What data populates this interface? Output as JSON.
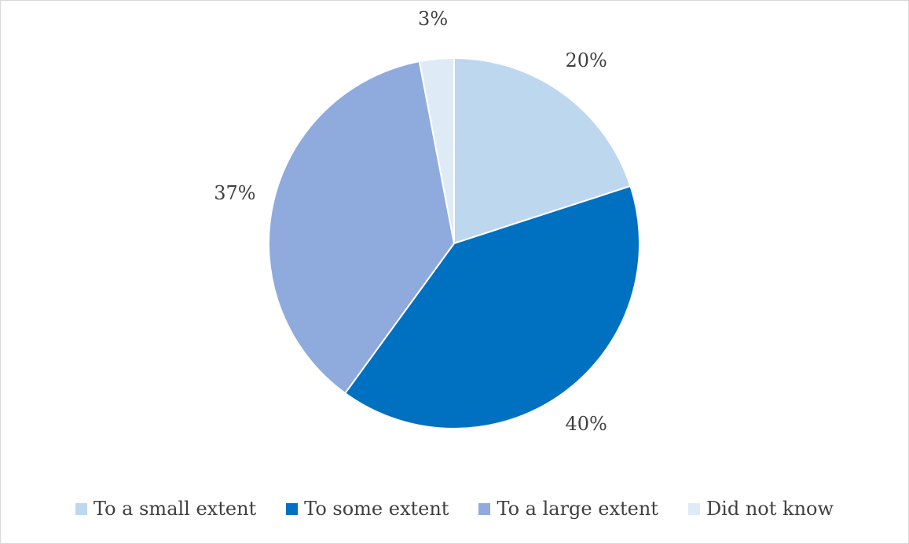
{
  "chart_data": {
    "type": "pie",
    "start_angle_deg": 0,
    "direction": "clockwise",
    "slices": [
      {
        "name": "To a small extent",
        "value": 20,
        "label": "20%",
        "color": "#bdd7ee"
      },
      {
        "name": "To some extent",
        "value": 40,
        "label": "40%",
        "color": "#0070c0"
      },
      {
        "name": "To a large extent",
        "value": 37,
        "label": "37%",
        "color": "#8faadc"
      },
      {
        "name": "Did not know",
        "value": 3,
        "label": "3%",
        "color": "#deebf7"
      }
    ],
    "legend_position": "bottom",
    "border_color": "#d9d9d9",
    "text_color": "#404040"
  }
}
